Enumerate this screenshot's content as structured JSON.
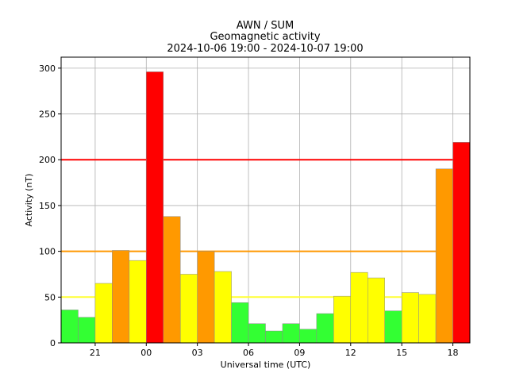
{
  "chart_data": {
    "type": "bar",
    "title_lines": [
      "AWN / SUM",
      "Geomagnetic activity",
      "2024-10-06 19:00 - 2024-10-07 19:00"
    ],
    "xlabel": "Universal time (UTC)",
    "ylabel": "Activity (nT)",
    "xlim": [
      0,
      24
    ],
    "ylim": [
      0,
      312
    ],
    "grid": true,
    "x_ticks": [
      {
        "pos": 2,
        "label": "21"
      },
      {
        "pos": 5,
        "label": "00"
      },
      {
        "pos": 8,
        "label": "03"
      },
      {
        "pos": 11,
        "label": "06"
      },
      {
        "pos": 14,
        "label": "09"
      },
      {
        "pos": 17,
        "label": "12"
      },
      {
        "pos": 20,
        "label": "15"
      },
      {
        "pos": 23,
        "label": "18"
      }
    ],
    "y_ticks": [
      0,
      50,
      100,
      150,
      200,
      250,
      300
    ],
    "values": [
      36,
      28,
      65,
      101,
      90,
      296,
      138,
      75,
      100,
      78,
      44,
      21,
      13,
      21,
      15,
      32,
      51,
      77,
      71,
      35,
      55,
      53,
      190,
      219
    ],
    "bar_colors": [
      "#33ff33",
      "#33ff33",
      "#ffff00",
      "#ff9900",
      "#ffff00",
      "#ff0000",
      "#ff9900",
      "#ffff00",
      "#ff9900",
      "#ffff00",
      "#33ff33",
      "#33ff33",
      "#33ff33",
      "#33ff33",
      "#33ff33",
      "#33ff33",
      "#ffff00",
      "#ffff00",
      "#ffff00",
      "#33ff33",
      "#ffff00",
      "#ffff00",
      "#ff9900",
      "#ff0000"
    ],
    "threshold_lines": [
      {
        "value": 50,
        "color": "#ffff33"
      },
      {
        "value": 100,
        "color": "#ff9900"
      },
      {
        "value": 200,
        "color": "#ff0000"
      }
    ]
  }
}
